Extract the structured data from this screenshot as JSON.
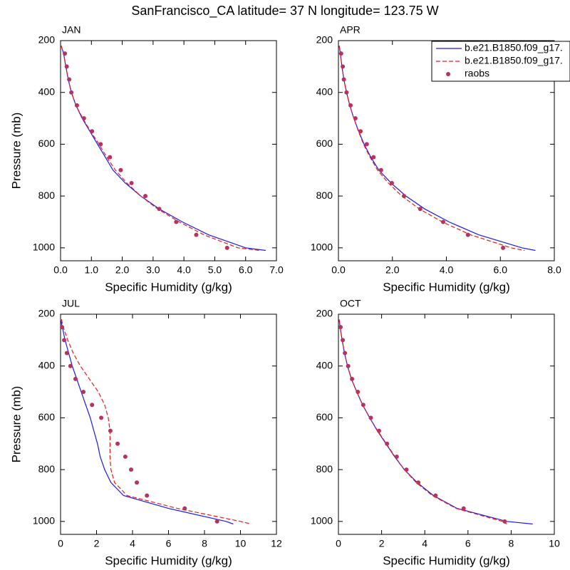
{
  "title": "SanFrancisco_CA  latitude= 37 N longitude= 123.75 W",
  "chart_data": [
    {
      "type": "line",
      "title": "JAN",
      "x_label": "Specific Humidity (g/kg)",
      "y_label": "Pressure (mb)",
      "xlim": [
        0,
        7
      ],
      "xticks": [
        {
          "value": 0,
          "label": "0.0"
        },
        {
          "value": 1,
          "label": "1.0"
        },
        {
          "value": 2,
          "label": "2.0"
        },
        {
          "value": 3,
          "label": "3.0"
        },
        {
          "value": 4,
          "label": "4.0"
        },
        {
          "value": 5,
          "label": "5.0"
        },
        {
          "value": 6,
          "label": "6.0"
        },
        {
          "value": 7,
          "label": "7.0"
        }
      ],
      "ylim": [
        1050,
        200
      ],
      "yticks": [
        200,
        400,
        600,
        800,
        1000
      ],
      "series": [
        {
          "color": "#1a1aee",
          "style": "solid",
          "x": [
            0.02,
            0.1,
            0.17,
            0.25,
            0.35,
            0.5,
            0.7,
            0.95,
            1.2,
            1.45,
            1.7,
            2.1,
            2.6,
            3.2,
            3.95,
            4.8,
            6.0,
            6.65
          ],
          "values": [
            220,
            250,
            300,
            350,
            400,
            450,
            500,
            550,
            600,
            650,
            700,
            750,
            800,
            850,
            900,
            950,
            1000,
            1010
          ]
        },
        {
          "color": "#ee1a1a",
          "style": "dashed",
          "x": [
            0.02,
            0.1,
            0.17,
            0.25,
            0.35,
            0.5,
            0.72,
            0.97,
            1.25,
            1.5,
            1.78,
            2.15,
            2.6,
            3.15,
            3.85,
            4.65,
            5.75,
            6.45
          ],
          "values": [
            220,
            250,
            300,
            350,
            400,
            450,
            500,
            550,
            600,
            650,
            700,
            750,
            800,
            850,
            900,
            950,
            1000,
            1010
          ]
        },
        {
          "color": "#b8325e",
          "style": "marker",
          "x": [
            0.14,
            0.2,
            0.28,
            0.35,
            0.53,
            0.76,
            1.02,
            1.3,
            1.6,
            1.95,
            2.3,
            2.75,
            3.2,
            3.75,
            4.4,
            5.4
          ],
          "values": [
            250,
            300,
            350,
            400,
            450,
            500,
            550,
            600,
            650,
            700,
            750,
            800,
            850,
            900,
            950,
            1000
          ]
        }
      ]
    },
    {
      "type": "line",
      "title": "APR",
      "x_label": "Specific Humidity (g/kg)",
      "legend": "upper right",
      "xlim": [
        0,
        8
      ],
      "xticks": [
        {
          "value": 0,
          "label": "0.0"
        },
        {
          "value": 2,
          "label": "2.0"
        },
        {
          "value": 4,
          "label": "4.0"
        },
        {
          "value": 6,
          "label": "6.0"
        },
        {
          "value": 8,
          "label": "8.0"
        }
      ],
      "ylim": [
        1050,
        200
      ],
      "yticks": [
        200,
        400,
        600,
        800,
        1000
      ],
      "series": [
        {
          "name": "b.e21.B1850.f09_g17.",
          "color": "#1a1aee",
          "style": "solid",
          "x": [
            0.03,
            0.07,
            0.13,
            0.2,
            0.3,
            0.42,
            0.57,
            0.75,
            0.95,
            1.2,
            1.5,
            1.95,
            2.5,
            3.2,
            4.1,
            5.2,
            6.8,
            7.3
          ],
          "values": [
            220,
            250,
            300,
            350,
            400,
            450,
            500,
            550,
            600,
            650,
            700,
            750,
            800,
            850,
            900,
            950,
            1000,
            1010
          ]
        },
        {
          "name": "b.e21.B1850.f09_g17.",
          "color": "#ee1a1a",
          "style": "dashed",
          "x": [
            0.03,
            0.07,
            0.13,
            0.2,
            0.3,
            0.42,
            0.57,
            0.74,
            0.93,
            1.17,
            1.45,
            1.85,
            2.35,
            3.0,
            3.85,
            4.9,
            6.4,
            6.9
          ],
          "values": [
            220,
            250,
            300,
            350,
            400,
            450,
            500,
            550,
            600,
            650,
            700,
            750,
            800,
            850,
            900,
            950,
            1000,
            1010
          ]
        },
        {
          "name": "raobs",
          "color": "#b8325e",
          "style": "marker",
          "x": [
            0.1,
            0.16,
            0.2,
            0.3,
            0.45,
            0.63,
            0.82,
            1.05,
            1.3,
            1.58,
            1.98,
            2.43,
            3.03,
            3.88,
            4.8,
            6.1
          ],
          "values": [
            250,
            300,
            350,
            400,
            450,
            500,
            550,
            600,
            650,
            700,
            750,
            800,
            850,
            900,
            950,
            1000
          ]
        }
      ]
    },
    {
      "type": "line",
      "title": "JUL",
      "x_label": "Specific Humidity (g/kg)",
      "y_label": "Pressure (mb)",
      "xlim": [
        0,
        12
      ],
      "xticks": [
        0,
        2,
        4,
        6,
        8,
        10,
        12
      ],
      "ylim": [
        1050,
        200
      ],
      "yticks": [
        200,
        400,
        600,
        800,
        1000
      ],
      "series": [
        {
          "color": "#1a1aee",
          "style": "solid",
          "x": [
            0.0,
            0.1,
            0.25,
            0.45,
            0.65,
            0.9,
            1.15,
            1.4,
            1.65,
            1.85,
            2.05,
            2.2,
            2.45,
            2.8,
            3.5,
            6.0,
            9.2,
            9.6
          ],
          "values": [
            220,
            250,
            300,
            350,
            400,
            450,
            500,
            550,
            600,
            650,
            700,
            750,
            800,
            850,
            900,
            950,
            1000,
            1010
          ]
        },
        {
          "color": "#ee1a1a",
          "style": "dashed",
          "x": [
            0.05,
            0.15,
            0.4,
            0.7,
            1.1,
            1.6,
            2.1,
            2.45,
            2.65,
            2.75,
            2.75,
            2.75,
            2.8,
            3.0,
            3.7,
            6.5,
            10.0,
            10.6
          ],
          "values": [
            220,
            250,
            300,
            350,
            400,
            450,
            500,
            550,
            600,
            650,
            700,
            750,
            800,
            850,
            900,
            950,
            1000,
            1010
          ]
        },
        {
          "color": "#b8325e",
          "style": "marker",
          "x": [
            0.08,
            0.2,
            0.35,
            0.55,
            0.83,
            1.27,
            1.75,
            2.26,
            2.77,
            3.17,
            3.6,
            3.92,
            4.24,
            4.8,
            6.9,
            8.7
          ],
          "values": [
            250,
            300,
            350,
            400,
            450,
            500,
            550,
            600,
            650,
            700,
            750,
            800,
            850,
            900,
            950,
            1000
          ]
        }
      ]
    },
    {
      "type": "line",
      "title": "OCT",
      "x_label": "Specific Humidity (g/kg)",
      "xlim": [
        0,
        10
      ],
      "xticks": [
        0,
        2,
        4,
        6,
        8,
        10
      ],
      "ylim": [
        1050,
        200
      ],
      "yticks": [
        200,
        400,
        600,
        800,
        1000
      ],
      "series": [
        {
          "color": "#1a1aee",
          "style": "solid",
          "x": [
            0.03,
            0.08,
            0.17,
            0.28,
            0.42,
            0.6,
            0.85,
            1.12,
            1.45,
            1.8,
            2.2,
            2.6,
            3.05,
            3.65,
            4.4,
            5.5,
            7.8,
            9.0
          ],
          "values": [
            220,
            250,
            300,
            350,
            400,
            450,
            500,
            550,
            600,
            650,
            700,
            750,
            800,
            850,
            900,
            950,
            1000,
            1010
          ]
        },
        {
          "color": "#ee1a1a",
          "style": "dashed",
          "x": [
            0.03,
            0.08,
            0.17,
            0.28,
            0.42,
            0.6,
            0.85,
            1.12,
            1.45,
            1.82,
            2.22,
            2.62,
            3.05,
            3.6,
            4.35,
            5.45,
            7.6,
            7.8
          ],
          "values": [
            220,
            250,
            300,
            350,
            400,
            450,
            500,
            550,
            600,
            650,
            700,
            750,
            800,
            850,
            900,
            950,
            1000,
            1010
          ]
        },
        {
          "color": "#b8325e",
          "style": "marker",
          "x": [
            0.1,
            0.2,
            0.3,
            0.45,
            0.63,
            0.9,
            1.15,
            1.5,
            1.88,
            2.25,
            2.7,
            3.15,
            3.7,
            4.5,
            5.8,
            7.7
          ],
          "values": [
            250,
            300,
            350,
            400,
            450,
            500,
            550,
            600,
            650,
            700,
            750,
            800,
            850,
            900,
            950,
            1000
          ]
        }
      ]
    }
  ]
}
